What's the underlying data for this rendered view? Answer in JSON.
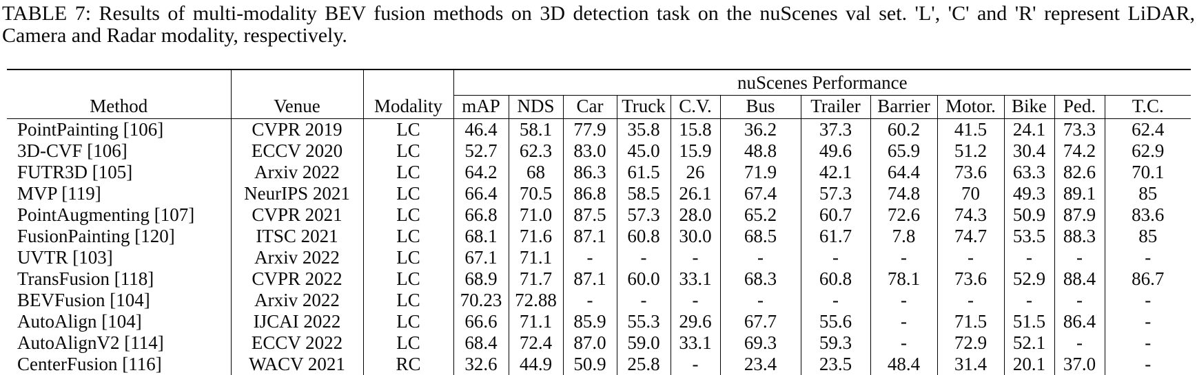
{
  "caption": "TABLE 7: Results of multi-modality BEV fusion methods on 3D detection task on the nuScenes val set. 'L', 'C' and 'R' represent LiDAR, Camera and Radar modality, respectively.",
  "table": {
    "group_header": "nuScenes Performance",
    "columns": [
      "Method",
      "Venue",
      "Modality"
    ],
    "metric_columns": [
      "mAP",
      "NDS",
      "Car",
      "Truck",
      "C.V.",
      "Bus",
      "Trailer",
      "Barrier",
      "Motor.",
      "Bike",
      "Ped.",
      "T.C."
    ],
    "rows": [
      {
        "method": "PointPainting [106]",
        "venue": "CVPR 2019",
        "modality": "LC",
        "values": [
          "46.4",
          "58.1",
          "77.9",
          "35.8",
          "15.8",
          "36.2",
          "37.3",
          "60.2",
          "41.5",
          "24.1",
          "73.3",
          "62.4"
        ]
      },
      {
        "method": "3D-CVF [106]",
        "venue": "ECCV 2020",
        "modality": "LC",
        "values": [
          "52.7",
          "62.3",
          "83.0",
          "45.0",
          "15.9",
          "48.8",
          "49.6",
          "65.9",
          "51.2",
          "30.4",
          "74.2",
          "62.9"
        ]
      },
      {
        "method": "FUTR3D [105]",
        "venue": "Arxiv 2022",
        "modality": "LC",
        "values": [
          "64.2",
          "68",
          "86.3",
          "61.5",
          "26",
          "71.9",
          "42.1",
          "64.4",
          "73.6",
          "63.3",
          "82.6",
          "70.1"
        ]
      },
      {
        "method": "MVP [119]",
        "venue": "NeurIPS 2021",
        "modality": "LC",
        "values": [
          "66.4",
          "70.5",
          "86.8",
          "58.5",
          "26.1",
          "67.4",
          "57.3",
          "74.8",
          "70",
          "49.3",
          "89.1",
          "85"
        ]
      },
      {
        "method": "PointAugmenting [107]",
        "venue": "CVPR 2021",
        "modality": "LC",
        "values": [
          "66.8",
          "71.0",
          "87.5",
          "57.3",
          "28.0",
          "65.2",
          "60.7",
          "72.6",
          "74.3",
          "50.9",
          "87.9",
          "83.6"
        ]
      },
      {
        "method": "FusionPainting [120]",
        "venue": "ITSC 2021",
        "modality": "LC",
        "values": [
          "68.1",
          "71.6",
          "87.1",
          "60.8",
          "30.0",
          "68.5",
          "61.7",
          "7.8",
          "74.7",
          "53.5",
          "88.3",
          "85"
        ]
      },
      {
        "method": "UVTR [103]",
        "venue": "Arxiv 2022",
        "modality": "LC",
        "values": [
          "67.1",
          "71.1",
          "-",
          "-",
          "-",
          "-",
          "-",
          "-",
          "-",
          "-",
          "-",
          "-"
        ]
      },
      {
        "method": "TransFusion [118]",
        "venue": "CVPR 2022",
        "modality": "LC",
        "values": [
          "68.9",
          "71.7",
          "87.1",
          "60.0",
          "33.1",
          "68.3",
          "60.8",
          "78.1",
          "73.6",
          "52.9",
          "88.4",
          "86.7"
        ]
      },
      {
        "method": "BEVFusion [104]",
        "venue": "Arxiv 2022",
        "modality": "LC",
        "values": [
          "70.23",
          "72.88",
          "-",
          "-",
          "-",
          "-",
          "-",
          "-",
          "-",
          "-",
          "-",
          "-"
        ]
      },
      {
        "method": "AutoAlign [104]",
        "venue": "IJCAI 2022",
        "modality": "LC",
        "values": [
          "66.6",
          "71.1",
          "85.9",
          "55.3",
          "29.6",
          "67.7",
          "55.6",
          "-",
          "71.5",
          "51.5",
          "86.4",
          "-"
        ]
      },
      {
        "method": "AutoAlignV2 [114]",
        "venue": "ECCV 2022",
        "modality": "LC",
        "values": [
          "68.4",
          "72.4",
          "87.0",
          "59.0",
          "33.1",
          "69.3",
          "59.3",
          "-",
          "72.9",
          "52.1",
          "-",
          "-"
        ]
      },
      {
        "method": "CenterFusion [116]",
        "venue": "WACV 2021",
        "modality": "RC",
        "values": [
          "32.6",
          "44.9",
          "50.9",
          "25.8",
          "-",
          "23.4",
          "23.5",
          "48.4",
          "31.4",
          "20.1",
          "37.0",
          "-"
        ]
      }
    ]
  }
}
